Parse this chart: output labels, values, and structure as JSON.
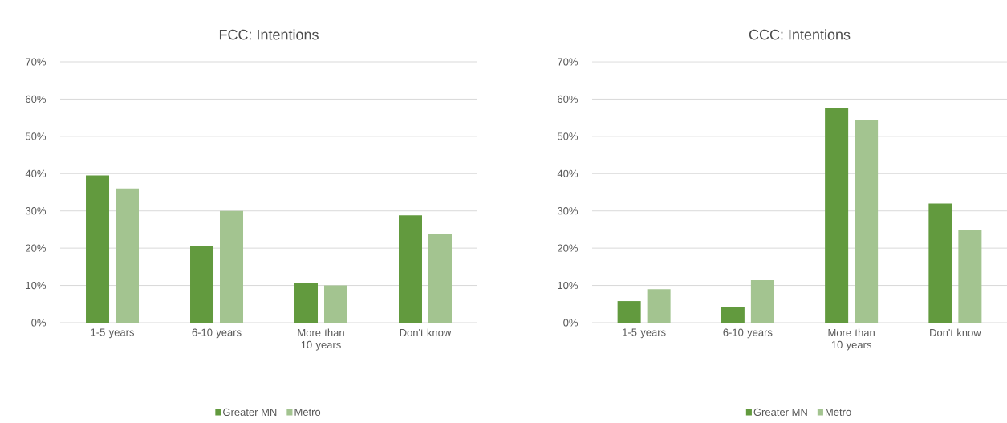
{
  "chart_data": [
    {
      "type": "bar",
      "title": "FCC: Intentions",
      "categories": [
        "1-5 years",
        "6-10 years",
        "More than 10 years",
        "Don't know"
      ],
      "series": [
        {
          "name": "Greater MN",
          "color": "#629a3e",
          "values": [
            39.5,
            20.6,
            10.6,
            28.8
          ]
        },
        {
          "name": "Metro",
          "color": "#a3c490",
          "values": [
            36.0,
            30.0,
            10.0,
            23.9
          ]
        }
      ],
      "ylim": [
        0,
        70
      ],
      "yticks": [
        {
          "value": 0,
          "label": "0%"
        },
        {
          "value": 10,
          "label": "10%"
        },
        {
          "value": 20,
          "label": "20%"
        },
        {
          "value": 30,
          "label": "30%"
        },
        {
          "value": 40,
          "label": "40%"
        },
        {
          "value": 50,
          "label": "50%"
        },
        {
          "value": 60,
          "label": "60%"
        },
        {
          "value": 70,
          "label": "70%"
        }
      ],
      "grid": "y",
      "legend": "bottom"
    },
    {
      "type": "bar",
      "title": "CCC: Intentions",
      "categories": [
        "1-5 years",
        "6-10 years",
        "More than 10 years",
        "Don't know"
      ],
      "series": [
        {
          "name": "Greater MN",
          "color": "#629a3e",
          "values": [
            5.8,
            4.3,
            57.5,
            32.0
          ]
        },
        {
          "name": "Metro",
          "color": "#a3c490",
          "values": [
            9.0,
            11.4,
            54.4,
            24.9
          ]
        }
      ],
      "ylim": [
        0,
        70
      ],
      "yticks": [
        {
          "value": 0,
          "label": "0%"
        },
        {
          "value": 10,
          "label": "10%"
        },
        {
          "value": 20,
          "label": "20%"
        },
        {
          "value": 30,
          "label": "30%"
        },
        {
          "value": 40,
          "label": "40%"
        },
        {
          "value": 50,
          "label": "50%"
        },
        {
          "value": 60,
          "label": "60%"
        },
        {
          "value": 70,
          "label": "70%"
        }
      ],
      "grid": "y",
      "legend": "bottom"
    }
  ]
}
